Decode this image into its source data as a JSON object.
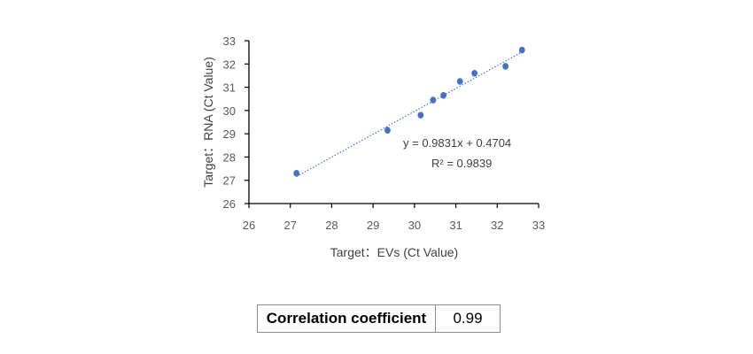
{
  "chart_data": {
    "type": "scatter",
    "xlabel": "Target：EVs (Ct Value)",
    "ylabel": "Target：RNA (Ct Value)",
    "xlim": [
      26,
      33
    ],
    "ylim": [
      26,
      33
    ],
    "xticks": [
      "26",
      "27",
      "28",
      "29",
      "30",
      "31",
      "32",
      "33"
    ],
    "yticks": [
      "26",
      "27",
      "28",
      "29",
      "30",
      "31",
      "32",
      "33"
    ],
    "grid": false,
    "points": [
      {
        "x": 27.15,
        "y": 27.3
      },
      {
        "x": 29.35,
        "y": 29.15
      },
      {
        "x": 30.15,
        "y": 29.8
      },
      {
        "x": 30.45,
        "y": 30.45
      },
      {
        "x": 30.7,
        "y": 30.65
      },
      {
        "x": 31.1,
        "y": 31.25
      },
      {
        "x": 31.45,
        "y": 31.6
      },
      {
        "x": 32.2,
        "y": 31.9
      },
      {
        "x": 32.6,
        "y": 32.6
      }
    ],
    "trendline": {
      "type": "linear",
      "slope": 0.9831,
      "intercept": 0.4704,
      "style": "dotted",
      "x_range": [
        27.15,
        32.6
      ]
    },
    "annotations": {
      "equation": "y = 0.9831x + 0.4704",
      "r_squared": "R² = 0.9839"
    },
    "colors": {
      "marker": "#4472c4",
      "trendline": "#4472c4",
      "axis": "#000000"
    }
  },
  "table": {
    "label": "Correlation coefficient",
    "value": "0.99"
  }
}
